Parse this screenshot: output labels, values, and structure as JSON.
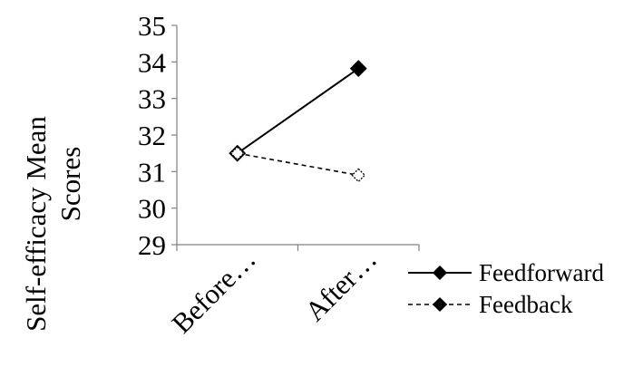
{
  "chart_data": {
    "type": "line",
    "categories": [
      "Before…",
      "After…"
    ],
    "series": [
      {
        "name": "Feedforward",
        "values": [
          31.5,
          33.82
        ],
        "line_style": "solid",
        "marker": "filled-diamond",
        "color": "#000000"
      },
      {
        "name": "Feedback",
        "values": [
          31.5,
          30.9
        ],
        "line_style": "dashed",
        "marker": "hollow-diamond",
        "color": "#000000"
      }
    ],
    "ylabel": "Self-efficacy Mean Scores",
    "ylabel_lines": [
      "Self-efficacy Mean",
      "Scores"
    ],
    "xlabel": "",
    "title": "",
    "ylim": [
      29,
      35
    ],
    "yticks": [
      "29",
      "30",
      "31",
      "32",
      "33",
      "34",
      "35"
    ],
    "grid": false,
    "legend_position": "right"
  }
}
